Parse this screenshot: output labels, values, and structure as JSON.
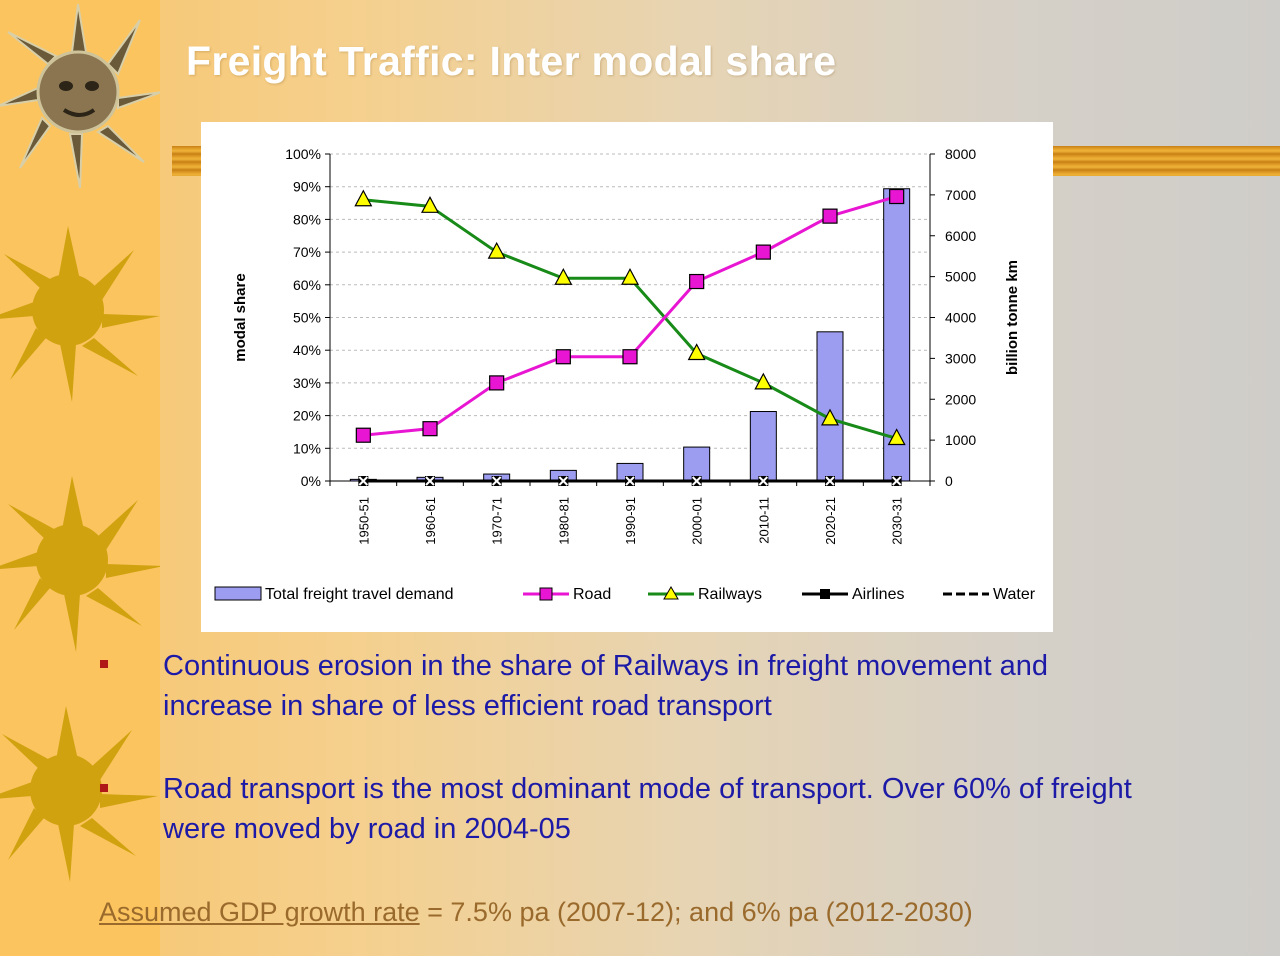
{
  "slide": {
    "title": "Freight Traffic: Inter modal share",
    "bullets": [
      "Continuous erosion in the share of Railways in freight movement and increase in share of less efficient road transport",
      "Road transport is the most dominant mode of transport. Over 60% of freight were moved by road in 2004-05"
    ],
    "footer_link": "Assumed GDP growth rate",
    "footer_rest": " = 7.5% pa (2007-12); and 6% pa (2012-2030)"
  },
  "colors": {
    "bars": "#9c9cf0",
    "road": "#e815d2",
    "railways": "#178a17",
    "airlines": "#000000",
    "water": "#000000",
    "title_text": "#ffffff",
    "body_text": "#1c1aa6",
    "bullet": "#b01818",
    "footer_text": "#9a6a2c"
  },
  "icons": [
    "sun-icon"
  ],
  "chart_data": {
    "type": "bar",
    "categories": [
      "1950-51",
      "1960-61",
      "1970-71",
      "1980-81",
      "1990-91",
      "2000-01",
      "2010-11",
      "2020-21",
      "2030-31"
    ],
    "ylabel": "modal share",
    "y2label": "billion tonne km",
    "ylim": [
      0,
      100
    ],
    "y2lim": [
      0,
      8000
    ],
    "yticks": [
      "0%",
      "10%",
      "20%",
      "30%",
      "40%",
      "50%",
      "60%",
      "70%",
      "80%",
      "90%",
      "100%"
    ],
    "y2ticks": [
      "0",
      "1000",
      "2000",
      "3000",
      "4000",
      "5000",
      "6000",
      "7000",
      "8000"
    ],
    "grid": true,
    "legend_position": "bottom",
    "series": [
      {
        "name": "Total freight travel demand",
        "type": "bar",
        "axis": "y2",
        "values": [
          40,
          90,
          170,
          260,
          430,
          830,
          1700,
          3650,
          7150
        ]
      },
      {
        "name": "Road",
        "type": "line",
        "marker": "square",
        "axis": "y1",
        "values": [
          14,
          16,
          30,
          38,
          38,
          61,
          70,
          81,
          87
        ]
      },
      {
        "name": "Railways",
        "type": "line",
        "marker": "triangle",
        "axis": "y1",
        "values": [
          86,
          84,
          70,
          62,
          62,
          39,
          30,
          19,
          13
        ]
      },
      {
        "name": "Airlines",
        "type": "line",
        "marker": "square",
        "axis": "y1",
        "values": [
          0,
          0,
          0,
          0,
          0,
          0,
          0,
          0,
          0
        ]
      },
      {
        "name": "Water",
        "type": "line",
        "marker": "x",
        "axis": "y1",
        "values": [
          0,
          0,
          0,
          0,
          0,
          0,
          0,
          0,
          0
        ]
      }
    ]
  }
}
